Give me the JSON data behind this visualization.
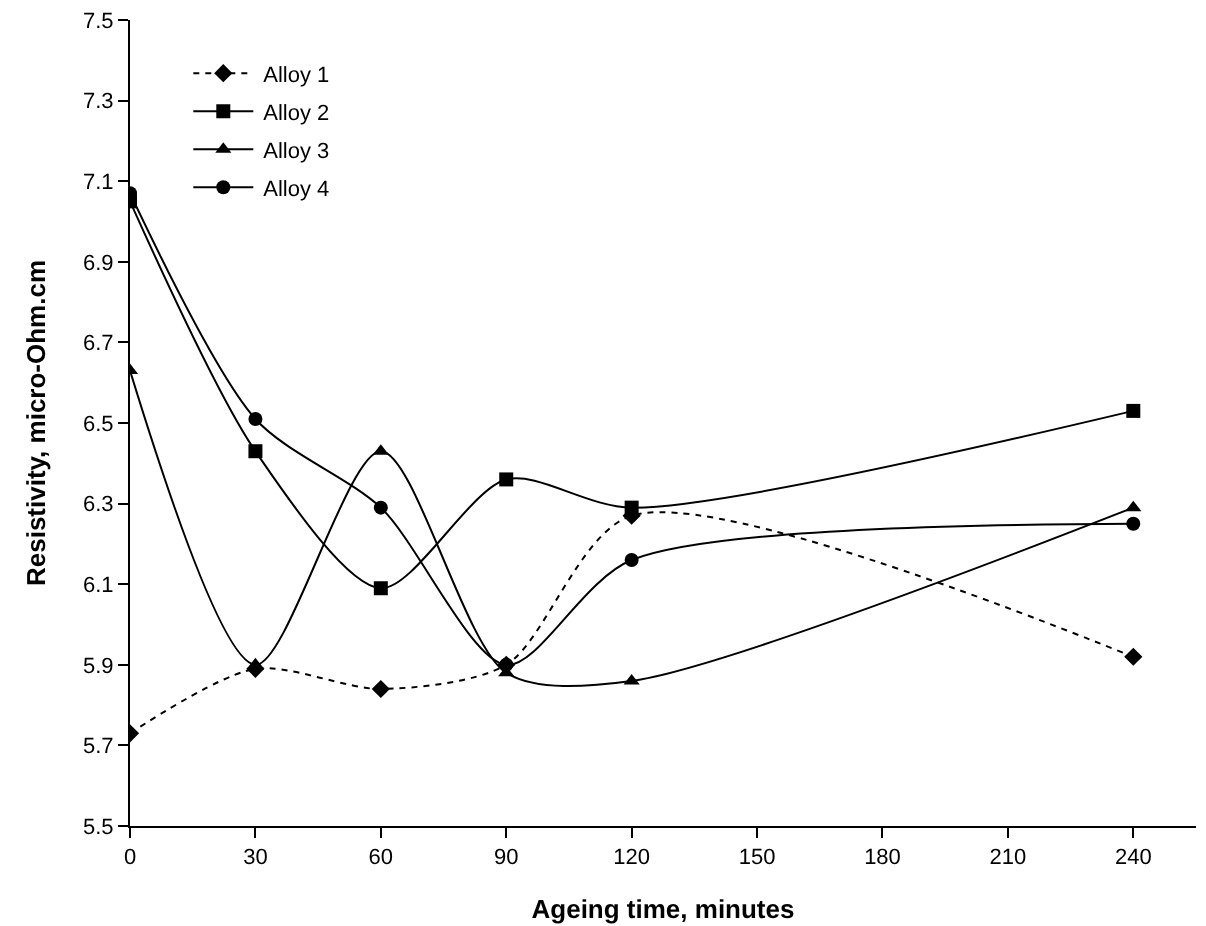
{
  "chart_data": {
    "type": "line",
    "xlabel": "Ageing time, minutes",
    "ylabel": "Resistivity, micro-Ohm.cm",
    "x": [
      0,
      30,
      60,
      90,
      120,
      240
    ],
    "xlim": [
      0,
      255
    ],
    "xticks": [
      0,
      30,
      60,
      90,
      120,
      150,
      180,
      210,
      240
    ],
    "ylim": [
      5.5,
      7.5
    ],
    "yticks": [
      5.5,
      5.7,
      5.9,
      6.1,
      6.3,
      6.5,
      6.7,
      6.9,
      7.1,
      7.3,
      7.5
    ],
    "grid": false,
    "legend": "top left",
    "series": [
      {
        "name": "Alloy 1",
        "color": "#000000",
        "marker": "diamond",
        "line_style": "dotted",
        "values": [
          5.73,
          5.89,
          5.84,
          5.9,
          6.27,
          5.92
        ]
      },
      {
        "name": "Alloy 2",
        "color": "#000000",
        "marker": "square",
        "line_style": "solid",
        "values": [
          7.05,
          6.43,
          6.09,
          6.36,
          6.29,
          6.53
        ]
      },
      {
        "name": "Alloy 3",
        "color": "#000000",
        "marker": "triangle",
        "line_style": "solid",
        "values": [
          6.63,
          5.9,
          6.43,
          5.88,
          5.86,
          6.29
        ]
      },
      {
        "name": "Alloy 4",
        "color": "#000000",
        "marker": "circle",
        "line_style": "solid",
        "values": [
          7.07,
          6.51,
          6.29,
          5.9,
          6.16,
          6.25
        ]
      }
    ]
  }
}
